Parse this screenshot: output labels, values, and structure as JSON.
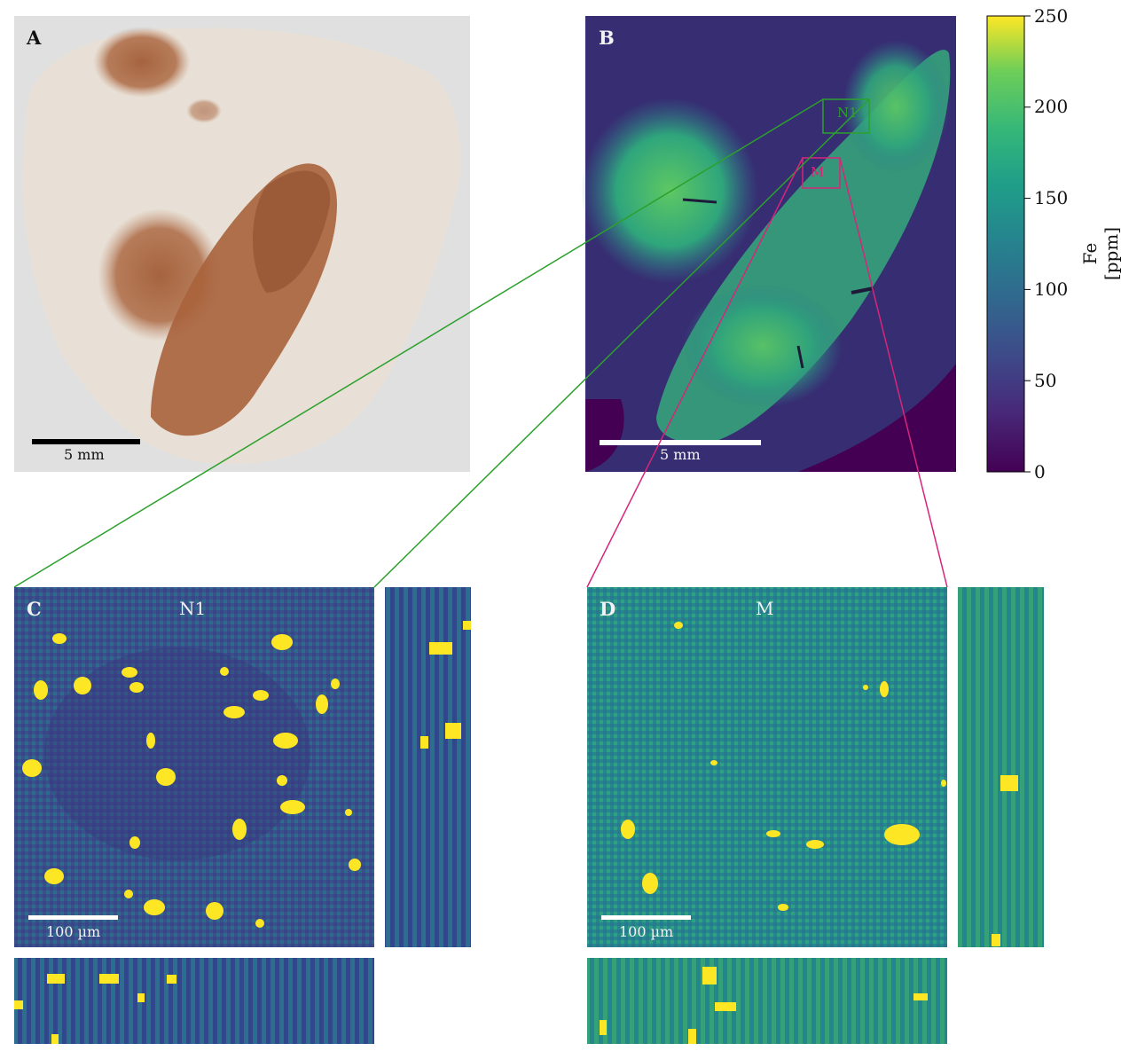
{
  "panels": {
    "A": {
      "letter": "A",
      "scalebar": "5 mm"
    },
    "B": {
      "letter": "B",
      "scalebar": "5 mm",
      "roi_n1": "N1",
      "roi_m": "M"
    },
    "C": {
      "letter": "C",
      "title": "N1",
      "scalebar": "100 µm"
    },
    "D": {
      "letter": "D",
      "title": "M",
      "scalebar": "100 µm"
    }
  },
  "colorbar": {
    "label": "Fe [ppm]",
    "ticks": [
      "250",
      "200",
      "150",
      "100",
      "50",
      "0"
    ],
    "range": [
      0,
      250
    ],
    "colormap": "viridis"
  },
  "colors": {
    "n1_connector": "#2ca02c",
    "m_connector": "#d6267a",
    "stain_brown": "#a7653f",
    "tissue": "#e3dbd1",
    "viridis_low": "#440154",
    "viridis_mid": "#21918c",
    "viridis_high": "#fde725"
  }
}
